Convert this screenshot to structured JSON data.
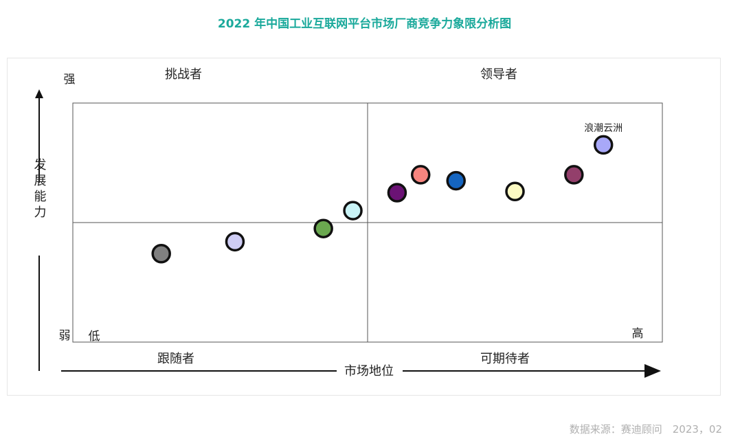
{
  "title": "2022 年中国工业互联网平台市场厂商竞争力象限分析图",
  "source": "数据来源：赛迪顾问　2023，02",
  "chart_data": {
    "type": "scatter",
    "title": "2022 年中国工业互联网平台市场厂商竞争力象限分析图",
    "xlabel": "市场地位",
    "ylabel": "发展能力",
    "x_low": "低",
    "x_high": "高",
    "y_low": "弱",
    "y_high": "强",
    "xlim": [
      0,
      100
    ],
    "ylim": [
      0,
      100
    ],
    "x_split": 50,
    "y_split": 50,
    "quadrants": {
      "top_left": "挑战者",
      "top_right": "领导者",
      "bottom_left": "跟随者",
      "bottom_right": "可期待者"
    },
    "points": [
      {
        "x": 15,
        "y": 37,
        "color": "#808080"
      },
      {
        "x": 27.5,
        "y": 42,
        "color": "#cfcdf5"
      },
      {
        "x": 42.5,
        "y": 47.5,
        "color": "#6aa84f"
      },
      {
        "x": 47.5,
        "y": 55,
        "color": "#c9f3f6"
      },
      {
        "x": 55,
        "y": 62.5,
        "color": "#6b1275"
      },
      {
        "x": 59,
        "y": 70,
        "color": "#f7857f"
      },
      {
        "x": 65,
        "y": 67.5,
        "color": "#1565c0"
      },
      {
        "x": 75,
        "y": 63,
        "color": "#fcfac3"
      },
      {
        "x": 85,
        "y": 70,
        "color": "#933f6b"
      },
      {
        "x": 90,
        "y": 82.5,
        "color": "#a8a8f8",
        "label": "浪潮云洲"
      }
    ]
  }
}
